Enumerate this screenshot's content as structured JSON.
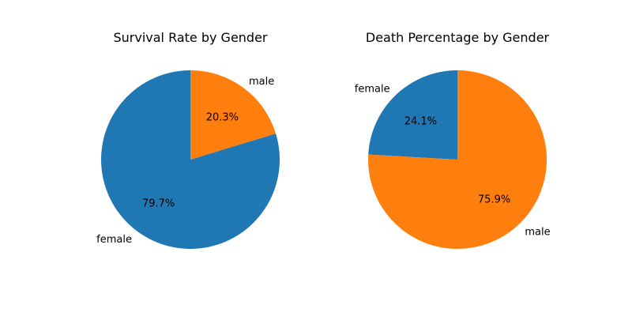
{
  "chart_data": [
    {
      "type": "pie",
      "title": "Survival Rate by Gender",
      "categories": [
        "female",
        "male"
      ],
      "values": [
        79.7,
        20.3
      ],
      "percent_labels": [
        "79.7%",
        "20.3%"
      ],
      "colors": [
        "#1f77b4",
        "#ff7f0e"
      ]
    },
    {
      "type": "pie",
      "title": "Death Percentage by Gender",
      "categories": [
        "female",
        "male"
      ],
      "values": [
        24.1,
        75.9
      ],
      "percent_labels": [
        "24.1%",
        "75.9%"
      ],
      "colors": [
        "#1f77b4",
        "#ff7f0e"
      ]
    }
  ]
}
